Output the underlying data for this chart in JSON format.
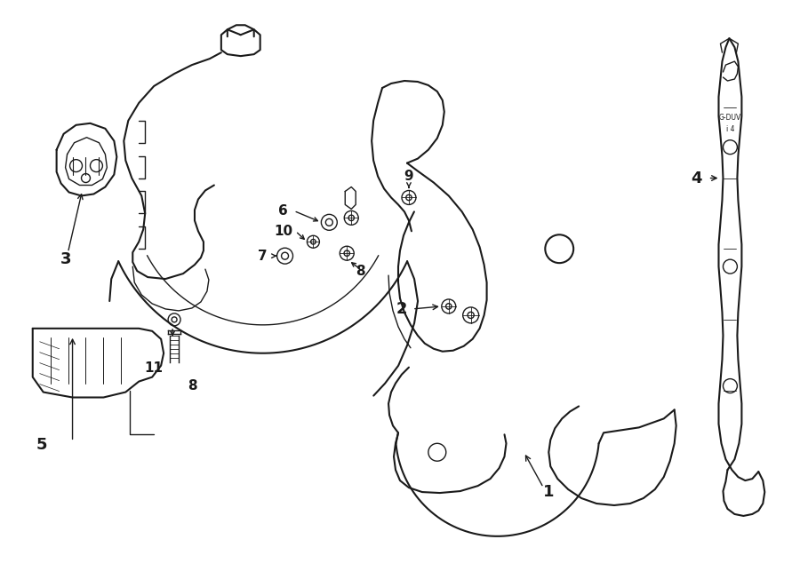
{
  "background_color": "#ffffff",
  "line_color": "#1a1a1a",
  "fig_width": 9.0,
  "fig_height": 6.61,
  "dpi": 100
}
